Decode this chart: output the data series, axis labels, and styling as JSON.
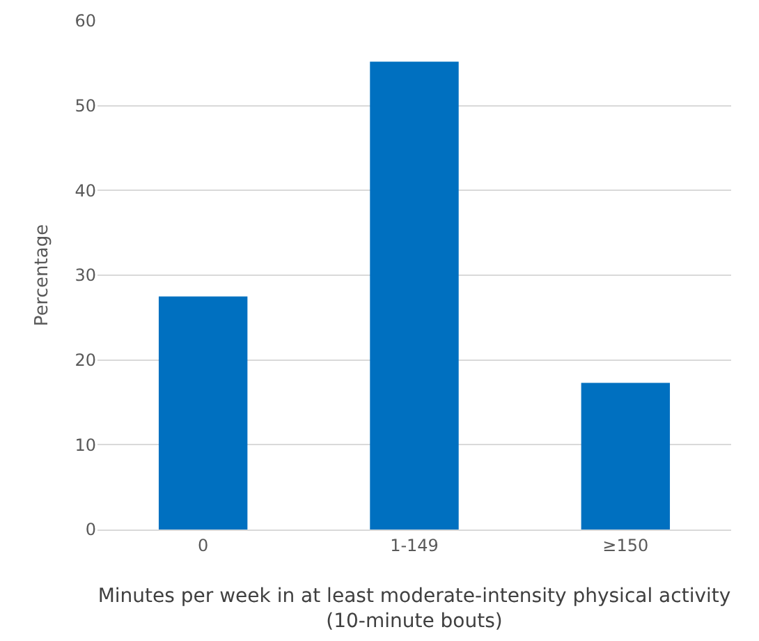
{
  "chart_data": {
    "type": "bar",
    "xlabel": "Minutes per week in at least moderate-intensity physical activity (10-minute bouts)",
    "ylabel": "Percentage",
    "categories": [
      "0",
      "1-149",
      "≥150"
    ],
    "values": [
      27.5,
      55.2,
      17.3
    ],
    "color": "#0070c0",
    "ylim": [
      0,
      60
    ],
    "yticks": [
      0,
      10,
      20,
      30,
      40,
      50,
      60
    ],
    "grid": "y"
  }
}
